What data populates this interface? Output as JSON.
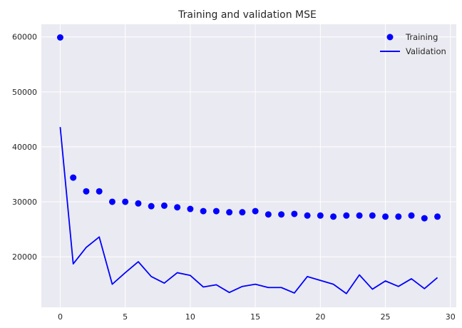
{
  "chart_data": {
    "type": "line",
    "title": "Training and validation MSE",
    "xlabel": "",
    "ylabel": "",
    "xlim": [
      -1.45,
      30.45
    ],
    "ylim": [
      10800,
      62300
    ],
    "xticks": [
      0,
      5,
      10,
      15,
      20,
      25,
      30
    ],
    "yticks": [
      20000,
      30000,
      40000,
      50000,
      60000
    ],
    "grid": true,
    "legend_position": "top-right",
    "series": [
      {
        "name": "Training",
        "style": "scatter",
        "color": "#0000ff",
        "x": [
          0,
          1,
          2,
          3,
          4,
          5,
          6,
          7,
          8,
          9,
          10,
          11,
          12,
          13,
          14,
          15,
          16,
          17,
          18,
          19,
          20,
          21,
          22,
          23,
          24,
          25,
          26,
          27,
          28,
          29
        ],
        "values": [
          59900,
          34400,
          31900,
          31900,
          30000,
          30000,
          29700,
          29200,
          29300,
          29000,
          28700,
          28300,
          28300,
          28100,
          28100,
          28300,
          27700,
          27700,
          27800,
          27500,
          27500,
          27300,
          27500,
          27500,
          27500,
          27300,
          27300,
          27500,
          27000,
          27300
        ]
      },
      {
        "name": "Validation",
        "style": "line",
        "color": "#0000ff",
        "x": [
          0,
          1,
          2,
          3,
          4,
          5,
          6,
          7,
          8,
          9,
          10,
          11,
          12,
          13,
          14,
          15,
          16,
          17,
          18,
          19,
          20,
          21,
          22,
          23,
          24,
          25,
          26,
          27,
          28,
          29
        ],
        "values": [
          43600,
          18700,
          21700,
          23600,
          15000,
          17100,
          19100,
          16400,
          15200,
          17100,
          16600,
          14500,
          14900,
          13500,
          14600,
          15000,
          14400,
          14400,
          13400,
          16400,
          15700,
          15000,
          13300,
          16700,
          14100,
          15600,
          14600,
          16000,
          14200,
          16200
        ]
      }
    ]
  },
  "colors": {
    "plot_background": "#eaeaf2",
    "grid": "#ffffff",
    "series": "#0000ff"
  }
}
